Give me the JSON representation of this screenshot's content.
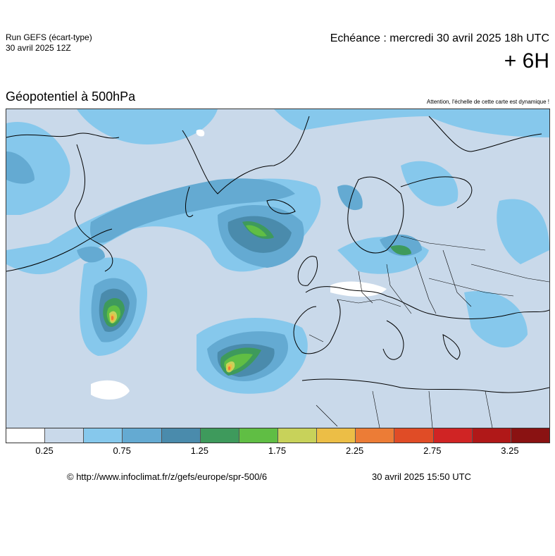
{
  "header": {
    "run_label": "Run GEFS (écart-type)",
    "run_date": "30 avril 2025 12Z",
    "echeance": "Echéance : mercredi 30 avril 2025 18h UTC",
    "lead_time": "+ 6H"
  },
  "map": {
    "title": "Géopotentiel à 500hPa",
    "warning": "Attention, l'échelle de cette carte est dynamique !"
  },
  "legend": {
    "colors": [
      "#ffffff",
      "#c9d9ea",
      "#86c8ec",
      "#64aad2",
      "#4a8bac",
      "#3e9a5c",
      "#60be44",
      "#c8d25a",
      "#ecbe46",
      "#ec7c36",
      "#e04c26",
      "#d02424",
      "#b01818",
      "#8a1212"
    ],
    "tick_labels": [
      "0.25",
      "0.75",
      "1.25",
      "1.75",
      "2.25",
      "2.75",
      "3.25"
    ]
  },
  "footer": {
    "copyright": "© http://www.infoclimat.fr/z/gefs/europe/spr-500/6",
    "timestamp": "30 avril 2025 15:50 UTC"
  }
}
